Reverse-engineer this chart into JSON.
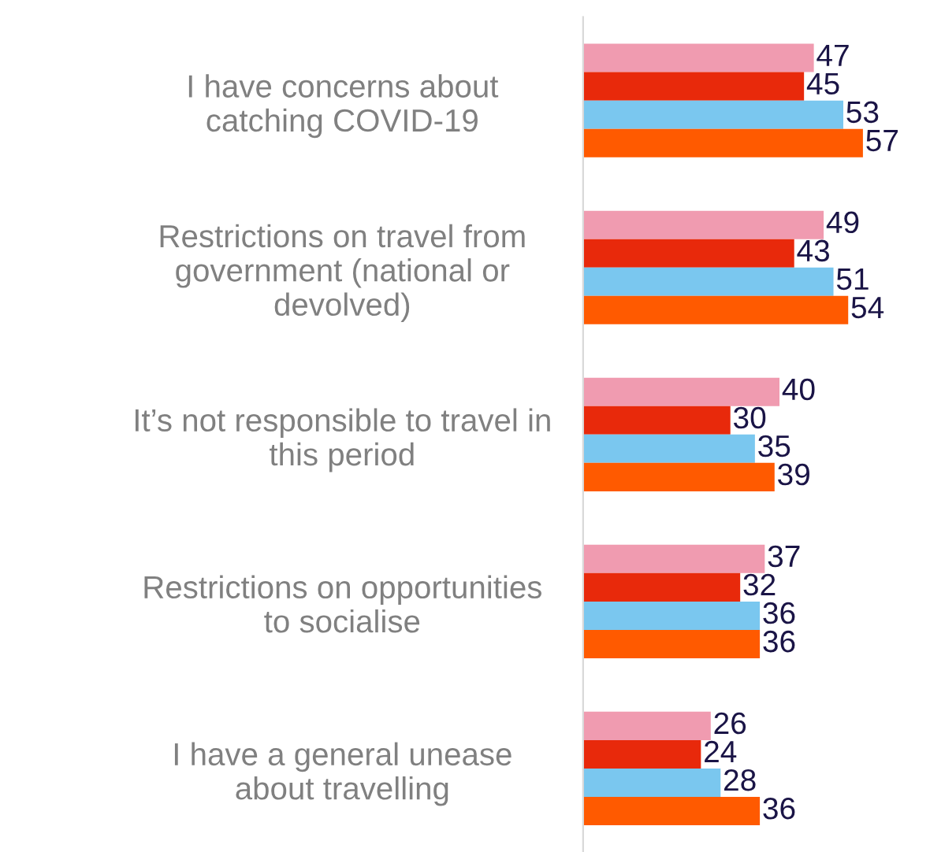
{
  "chart_data": {
    "type": "bar",
    "orientation": "horizontal",
    "categories": [
      "I have concerns about\ncatching COVID-19",
      "Restrictions on travel from\ngovernment (national or\ndevolved)",
      "It’s not responsible to travel in\nthis period",
      "Restrictions on opportunities\nto socialise",
      "I have a general unease\nabout travelling"
    ],
    "series": [
      {
        "color": "#f09bb0",
        "values": [
          47,
          49,
          40,
          37,
          26
        ]
      },
      {
        "color": "#e8290b",
        "values": [
          45,
          43,
          30,
          32,
          24
        ]
      },
      {
        "color": "#7ac7ef",
        "values": [
          53,
          51,
          35,
          36,
          28
        ]
      },
      {
        "color": "#ff5a00",
        "values": [
          57,
          54,
          39,
          36,
          36
        ]
      }
    ],
    "data_labels": true,
    "grid": false,
    "legend": false
  }
}
